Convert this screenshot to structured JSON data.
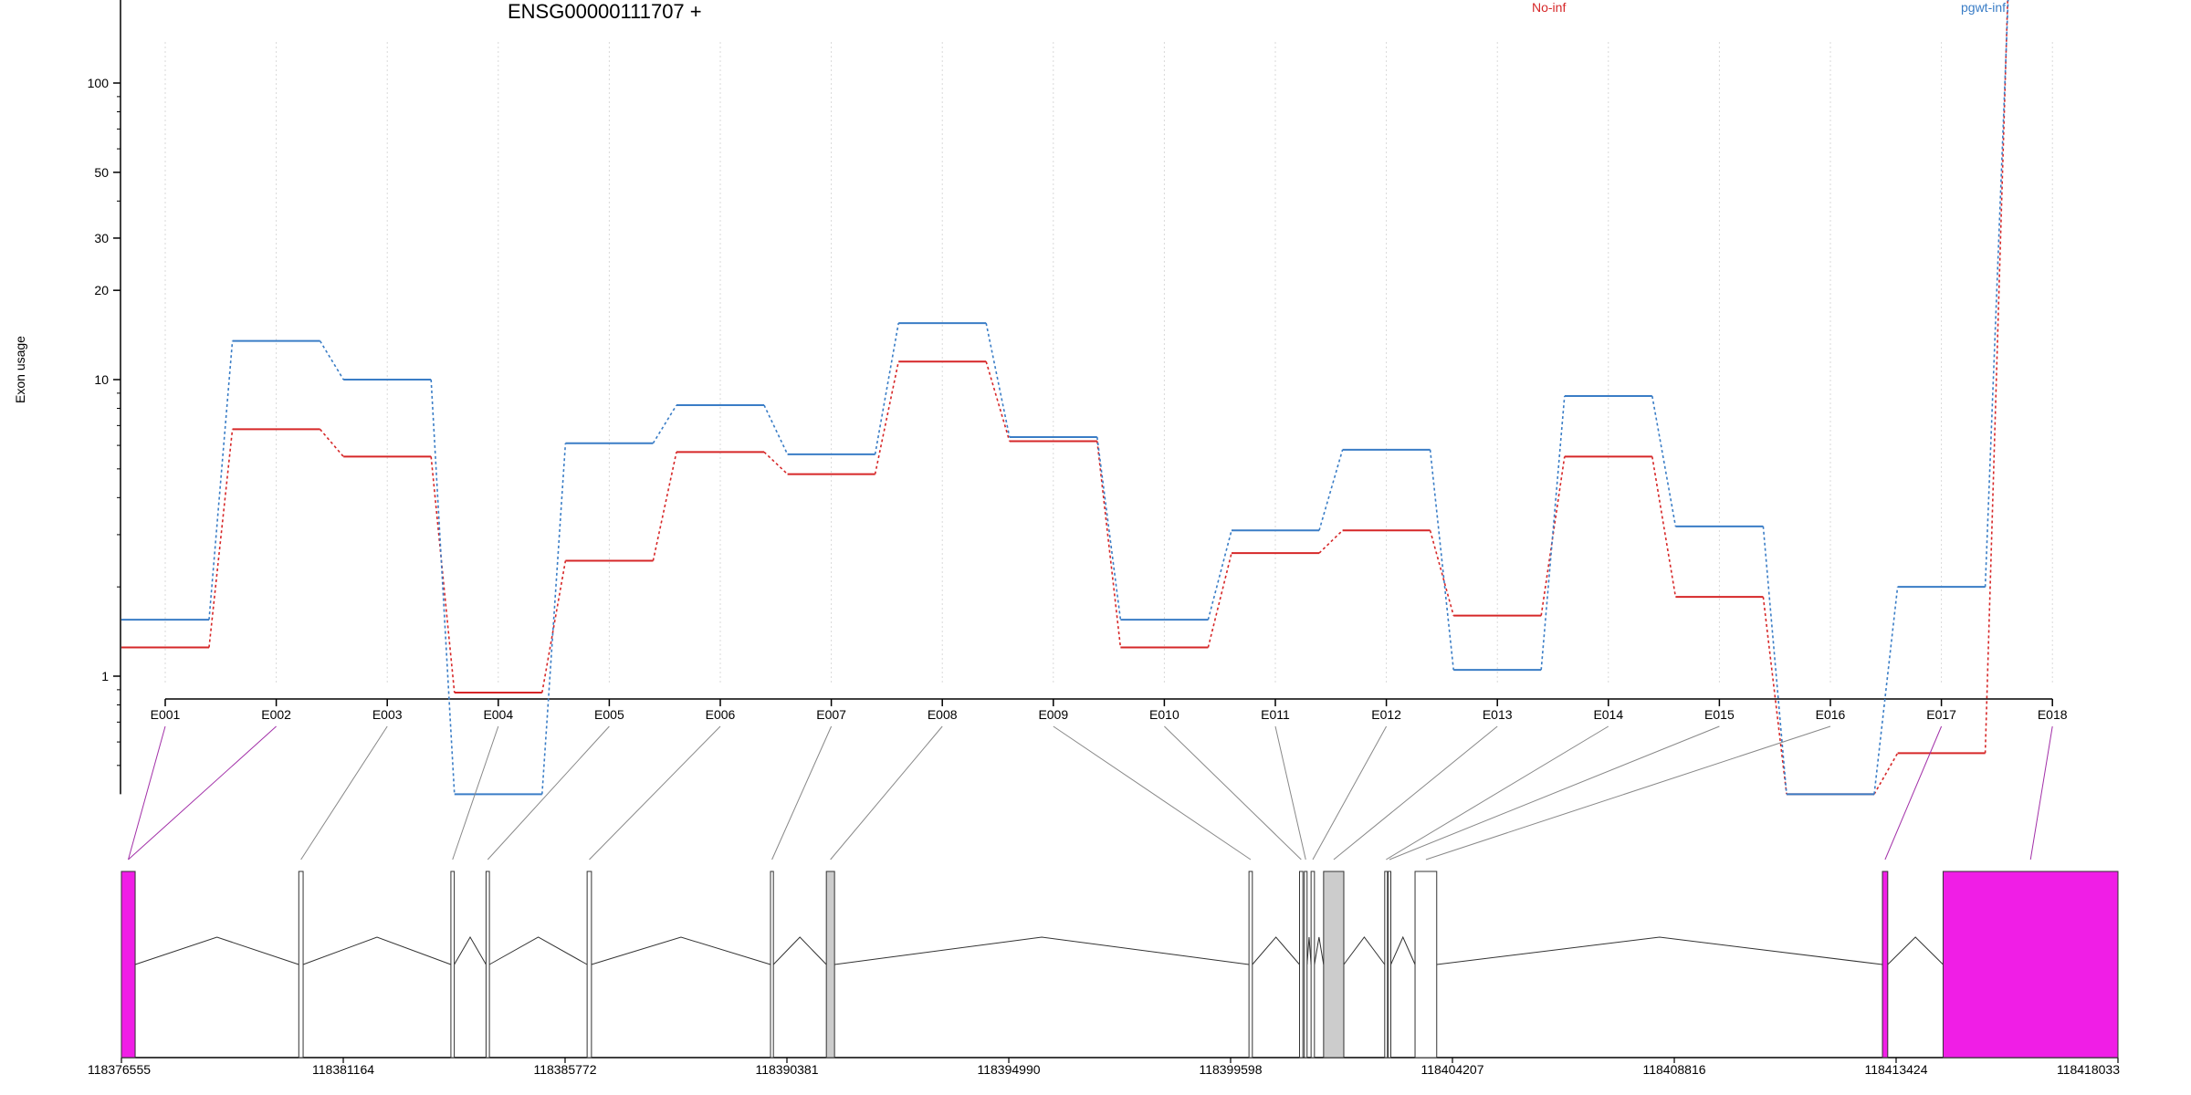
{
  "chart_data": {
    "type": "line",
    "title": "ENSG00000111707 +",
    "ylabel": "Exon usage",
    "y_scale": "log",
    "ylim": [
      0.4,
      300
    ],
    "y_ticks": [
      1,
      10,
      20,
      30,
      50,
      100,
      200,
      300
    ],
    "grid": "vertical dotted",
    "legend_placement": "top",
    "categories": [
      "E001",
      "E002",
      "E003",
      "E004",
      "E005",
      "E006",
      "E007",
      "E008",
      "E009",
      "E010",
      "E011",
      "E012",
      "E013",
      "E014",
      "E015",
      "E016",
      "E017",
      "E018"
    ],
    "series": [
      {
        "name": "No-inf",
        "color": "#d62728",
        "values": [
          1.25,
          6.8,
          5.5,
          0.88,
          2.45,
          5.7,
          4.8,
          11.5,
          6.2,
          1.25,
          2.6,
          3.1,
          1.6,
          5.5,
          1.85,
          0.4,
          0.55,
          245
        ]
      },
      {
        "name": "pgwt-inf",
        "color": "#3a7dc6",
        "values": [
          1.55,
          13.5,
          10.0,
          0.4,
          6.1,
          8.2,
          5.6,
          15.5,
          6.4,
          1.55,
          3.1,
          5.8,
          1.05,
          8.8,
          3.2,
          0.4,
          2.0,
          210
        ]
      }
    ],
    "gene_model": {
      "coordinate_ticks": [
        "118376555",
        "118381164",
        "118385772",
        "118390381",
        "118394990",
        "118399598",
        "118404207",
        "118408816",
        "118413424",
        "118418033"
      ],
      "coord_range": [
        118376555,
        118418033
      ],
      "exons": [
        {
          "id": "E001",
          "start": 118376555,
          "end": 118376840,
          "fill": "#f01ee6"
        },
        {
          "id": "E002",
          "start": 118376555,
          "end": 118376840,
          "fill": "#f01ee6"
        },
        {
          "id": "E003",
          "start": 118380240,
          "end": 118380330,
          "fill": "#ffffff"
        },
        {
          "id": "E004",
          "start": 118383400,
          "end": 118383470,
          "fill": "#ffffff"
        },
        {
          "id": "E005",
          "start": 118384130,
          "end": 118384200,
          "fill": "#ffffff"
        },
        {
          "id": "E006",
          "start": 118386230,
          "end": 118386320,
          "fill": "#ffffff"
        },
        {
          "id": "E007",
          "start": 118390040,
          "end": 118390100,
          "fill": "#ffffff"
        },
        {
          "id": "E008",
          "start": 118391200,
          "end": 118391370,
          "fill": "#cccccc"
        },
        {
          "id": "E009",
          "start": 118399980,
          "end": 118400050,
          "fill": "#ffffff"
        },
        {
          "id": "E010",
          "start": 118401030,
          "end": 118401100,
          "fill": "#ffffff"
        },
        {
          "id": "E011",
          "start": 118401130,
          "end": 118401160,
          "fill": "#ffffff"
        },
        {
          "id": "E012",
          "start": 118401270,
          "end": 118401340,
          "fill": "#ffffff"
        },
        {
          "id": "E013",
          "start": 118401530,
          "end": 118401950,
          "fill": "#cccccc"
        },
        {
          "id": "E014",
          "start": 118402800,
          "end": 118402850,
          "fill": "#ffffff"
        },
        {
          "id": "E015",
          "start": 118402870,
          "end": 118402920,
          "fill": "#ffffff"
        },
        {
          "id": "E016",
          "start": 118403430,
          "end": 118403880,
          "fill": "#ffffff"
        },
        {
          "id": "E017",
          "start": 118413140,
          "end": 118413250,
          "fill": "#f01ee6"
        },
        {
          "id": "E018",
          "start": 118414400,
          "end": 118418033,
          "fill": "#f01ee6"
        }
      ]
    }
  }
}
